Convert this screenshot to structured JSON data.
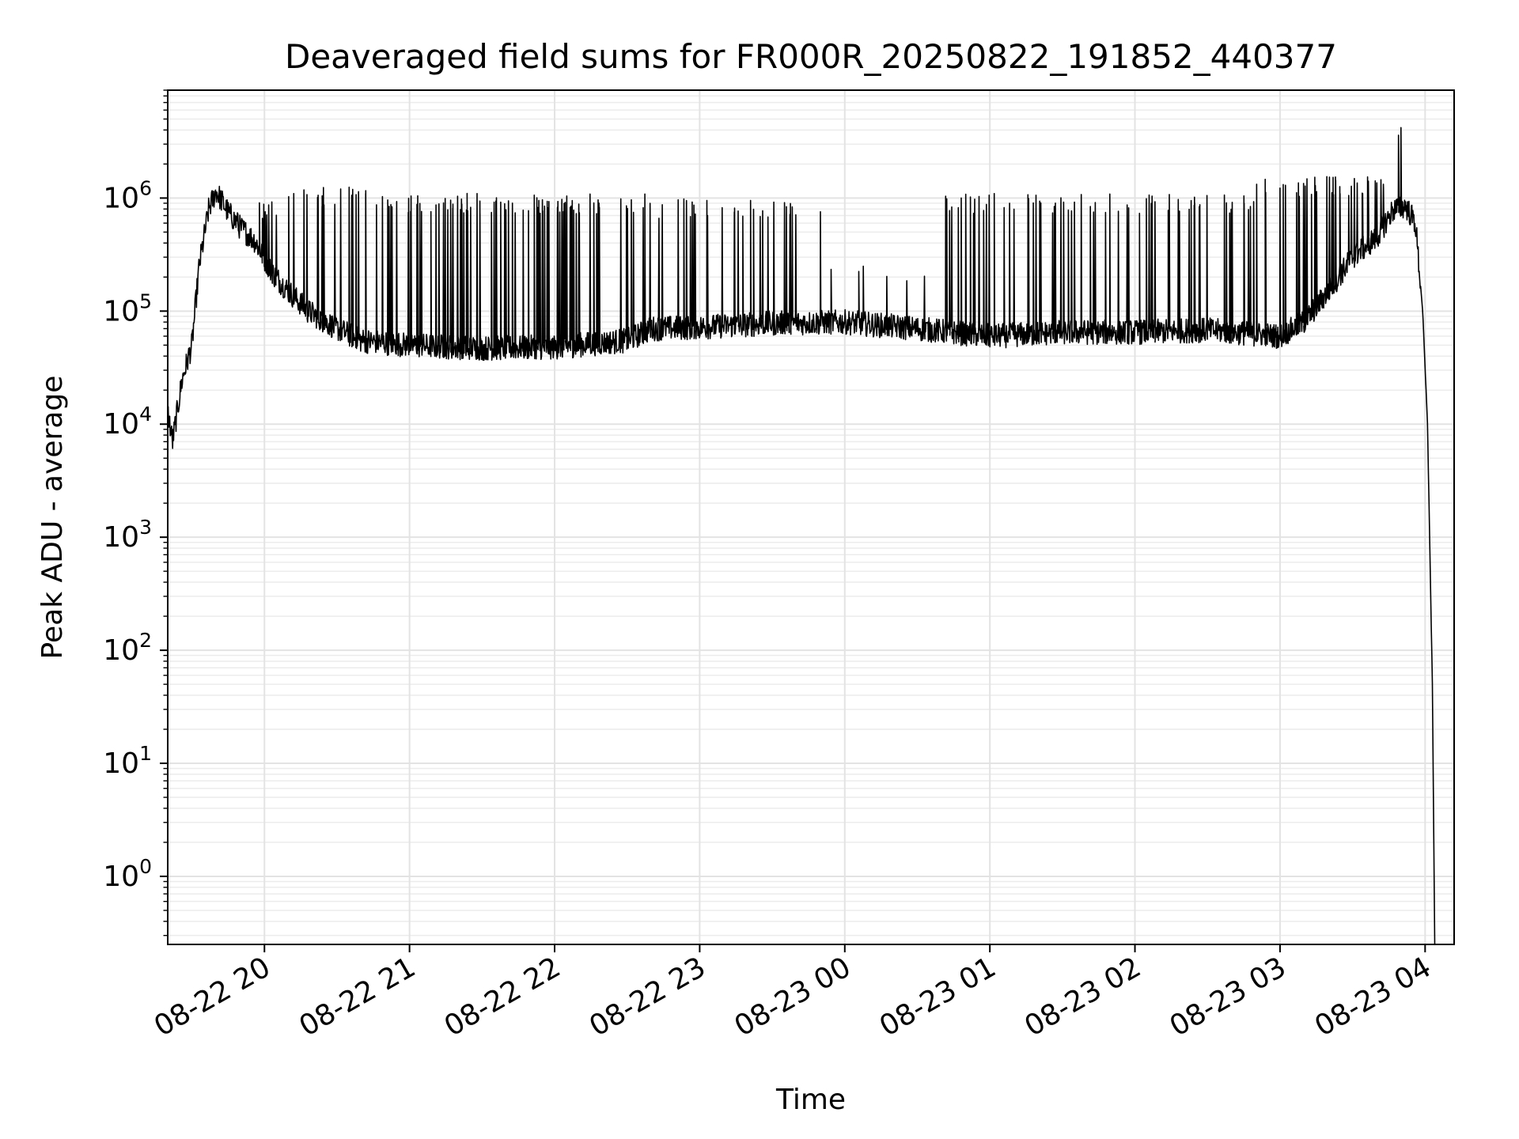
{
  "chart_data": {
    "type": "line",
    "title": "Deaveraged field sums for FR000R_20250822_191852_440377",
    "xlabel": "Time",
    "ylabel": "Peak ADU - average",
    "yscale": "log",
    "ylim": [
      0.25,
      9000000
    ],
    "xlim": [
      "2025-08-22 19:20",
      "2025-08-23 04:12"
    ],
    "x_ticks": [
      {
        "t": "2025-08-22 20:00",
        "label": "08-22 20"
      },
      {
        "t": "2025-08-22 21:00",
        "label": "08-22 21"
      },
      {
        "t": "2025-08-22 22:00",
        "label": "08-22 22"
      },
      {
        "t": "2025-08-22 23:00",
        "label": "08-22 23"
      },
      {
        "t": "2025-08-23 00:00",
        "label": "08-23 00"
      },
      {
        "t": "2025-08-23 01:00",
        "label": "08-23 01"
      },
      {
        "t": "2025-08-23 02:00",
        "label": "08-23 02"
      },
      {
        "t": "2025-08-23 03:00",
        "label": "08-23 03"
      },
      {
        "t": "2025-08-23 04:00",
        "label": "08-23 04"
      }
    ],
    "y_ticks": [
      {
        "value": 1,
        "base": "10",
        "exp": "0"
      },
      {
        "value": 10,
        "base": "10",
        "exp": "1"
      },
      {
        "value": 100,
        "base": "10",
        "exp": "2"
      },
      {
        "value": 1000,
        "base": "10",
        "exp": "3"
      },
      {
        "value": 10000,
        "base": "10",
        "exp": "4"
      },
      {
        "value": 100000,
        "base": "10",
        "exp": "5"
      },
      {
        "value": 1000000,
        "base": "10",
        "exp": "6"
      }
    ],
    "grid": true,
    "line_color": "#000000",
    "baseline": [
      {
        "t": "2025-08-22 19:20",
        "value": 13000
      },
      {
        "t": "2025-08-22 19:22",
        "value": 7000
      },
      {
        "t": "2025-08-22 19:26",
        "value": 25000
      },
      {
        "t": "2025-08-22 19:30",
        "value": 50000
      },
      {
        "t": "2025-08-22 19:33",
        "value": 250000
      },
      {
        "t": "2025-08-22 19:37",
        "value": 800000
      },
      {
        "t": "2025-08-22 19:40",
        "value": 1150000
      },
      {
        "t": "2025-08-22 19:45",
        "value": 750000
      },
      {
        "t": "2025-08-22 19:50",
        "value": 550000
      },
      {
        "t": "2025-08-22 19:56",
        "value": 420000
      },
      {
        "t": "2025-08-22 20:03",
        "value": 220000
      },
      {
        "t": "2025-08-22 20:10",
        "value": 150000
      },
      {
        "t": "2025-08-22 20:18",
        "value": 100000
      },
      {
        "t": "2025-08-22 20:30",
        "value": 70000
      },
      {
        "t": "2025-08-22 20:40",
        "value": 55000
      },
      {
        "t": "2025-08-22 21:00",
        "value": 50000
      },
      {
        "t": "2025-08-22 21:30",
        "value": 47000
      },
      {
        "t": "2025-08-22 22:00",
        "value": 48000
      },
      {
        "t": "2025-08-22 22:30",
        "value": 55000
      },
      {
        "t": "2025-08-22 22:40",
        "value": 70000
      },
      {
        "t": "2025-08-22 23:00",
        "value": 72000
      },
      {
        "t": "2025-08-22 23:30",
        "value": 78000
      },
      {
        "t": "2025-08-23 00:00",
        "value": 80000
      },
      {
        "t": "2025-08-23 00:30",
        "value": 70000
      },
      {
        "t": "2025-08-23 01:00",
        "value": 60000
      },
      {
        "t": "2025-08-23 01:30",
        "value": 65000
      },
      {
        "t": "2025-08-23 02:00",
        "value": 65000
      },
      {
        "t": "2025-08-23 02:30",
        "value": 68000
      },
      {
        "t": "2025-08-23 03:00",
        "value": 60000
      },
      {
        "t": "2025-08-23 03:10",
        "value": 80000
      },
      {
        "t": "2025-08-23 03:20",
        "value": 150000
      },
      {
        "t": "2025-08-23 03:30",
        "value": 300000
      },
      {
        "t": "2025-08-23 03:40",
        "value": 450000
      },
      {
        "t": "2025-08-23 03:47",
        "value": 800000
      },
      {
        "t": "2025-08-23 03:52",
        "value": 850000
      },
      {
        "t": "2025-08-23 03:56",
        "value": 600000
      },
      {
        "t": "2025-08-23 03:59",
        "value": 100000
      },
      {
        "t": "2025-08-23 04:01",
        "value": 10000
      },
      {
        "t": "2025-08-23 04:03",
        "value": 50
      },
      {
        "t": "2025-08-23 04:04",
        "value": 0.25
      }
    ],
    "spike_bands": [
      {
        "start": "2025-08-22 19:44",
        "end": "2025-08-22 20:08",
        "peak": 1000000,
        "count": 10
      },
      {
        "start": "2025-08-22 20:05",
        "end": "2025-08-22 20:50",
        "peak": 1250000,
        "count": 22
      },
      {
        "start": "2025-08-22 20:50",
        "end": "2025-08-22 22:40",
        "peak": 1100000,
        "count": 90
      },
      {
        "start": "2025-08-22 22:40",
        "end": "2025-08-22 23:52",
        "peak": 1000000,
        "count": 30
      },
      {
        "start": "2025-08-22 23:52",
        "end": "2025-08-23 00:40",
        "peak": 250000,
        "count": 6
      },
      {
        "start": "2025-08-23 00:40",
        "end": "2025-08-23 02:50",
        "peak": 1100000,
        "count": 70
      },
      {
        "start": "2025-08-23 02:50",
        "end": "2025-08-23 03:45",
        "peak": 1550000,
        "count": 40
      }
    ],
    "peaks": [
      {
        "t": "2025-08-23 03:50",
        "value": 4200000
      },
      {
        "t": "2025-08-23 03:49",
        "value": 3600000
      }
    ]
  }
}
